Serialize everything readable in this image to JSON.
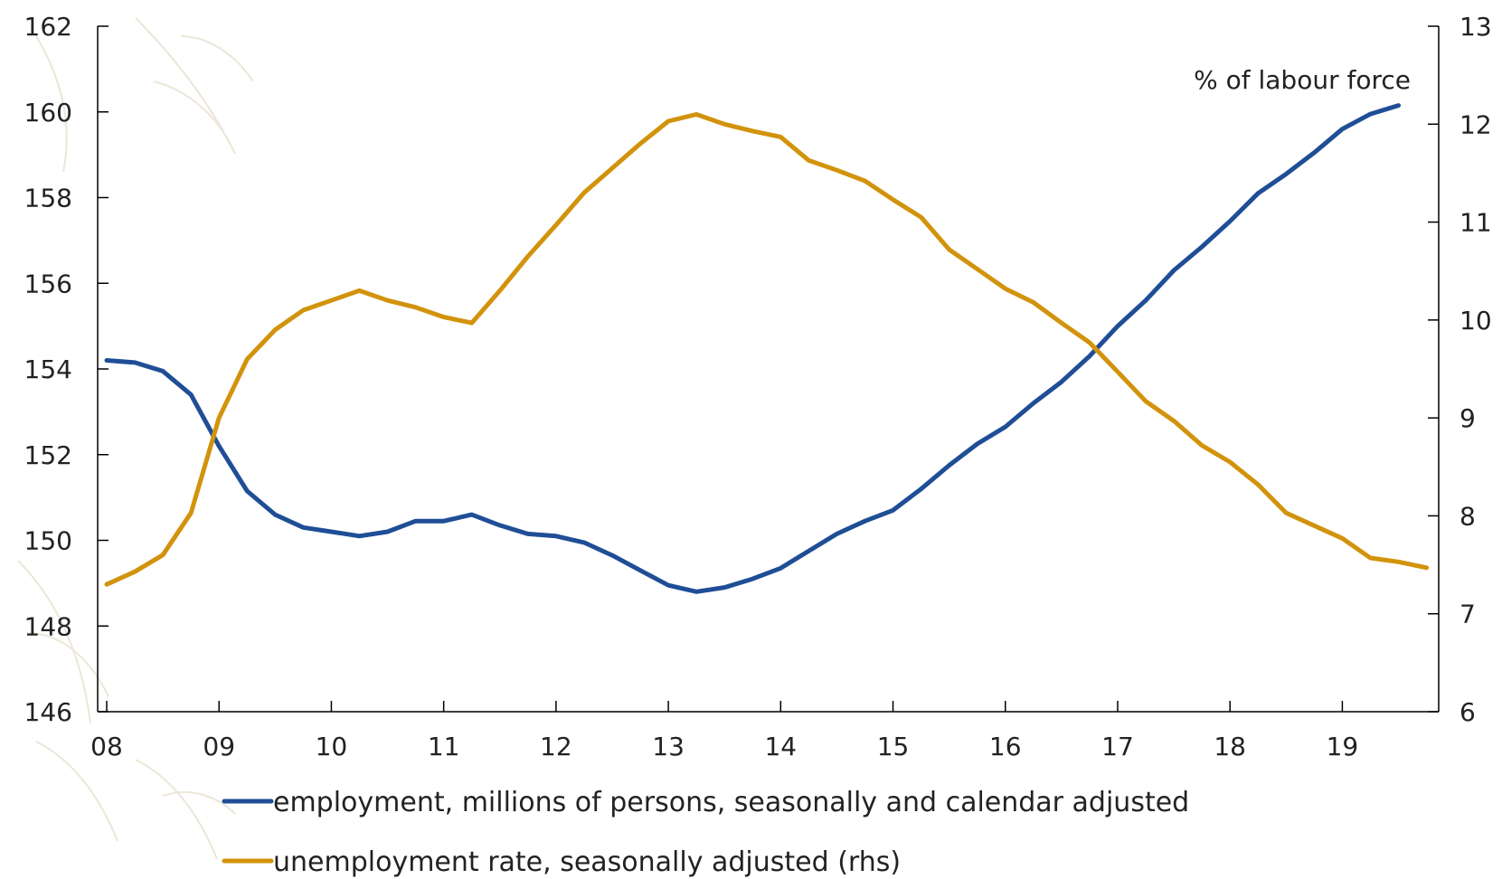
{
  "chart_data": {
    "type": "line",
    "title": "",
    "rhs_unit_label": "% of labour force",
    "x_tick_labels": [
      "08",
      "09",
      "10",
      "11",
      "12",
      "13",
      "14",
      "15",
      "16",
      "17",
      "18",
      "19"
    ],
    "x_range": [
      2008.0,
      2019.85
    ],
    "left_axis": {
      "ticks": [
        146,
        148,
        150,
        152,
        154,
        156,
        158,
        160,
        162
      ],
      "ylim": [
        146,
        162
      ]
    },
    "right_axis": {
      "ticks": [
        6,
        7,
        8,
        9,
        10,
        11,
        12,
        13
      ],
      "ylim": [
        6,
        13
      ]
    },
    "grid": false,
    "legend_position": "bottom",
    "x": [
      2008.0,
      2008.25,
      2008.5,
      2008.75,
      2009.0,
      2009.25,
      2009.5,
      2009.75,
      2010.0,
      2010.25,
      2010.5,
      2010.75,
      2011.0,
      2011.25,
      2011.5,
      2011.75,
      2012.0,
      2012.25,
      2012.5,
      2012.75,
      2013.0,
      2013.25,
      2013.5,
      2013.75,
      2014.0,
      2014.25,
      2014.5,
      2014.75,
      2015.0,
      2015.25,
      2015.5,
      2015.75,
      2016.0,
      2016.25,
      2016.5,
      2016.75,
      2017.0,
      2017.25,
      2017.5,
      2017.75,
      2018.0,
      2018.25,
      2018.5,
      2018.75,
      2019.0,
      2019.25,
      2019.5,
      2019.75
    ],
    "series": [
      {
        "name": "employment, millions of persons, seasonally and calendar adjusted",
        "axis": "left",
        "color": "#1f4e96",
        "values": [
          154.2,
          154.15,
          153.95,
          153.4,
          152.2,
          151.15,
          150.6,
          150.3,
          150.2,
          150.1,
          150.2,
          150.45,
          150.45,
          150.6,
          150.35,
          150.15,
          150.1,
          149.95,
          149.65,
          149.3,
          148.95,
          148.8,
          148.9,
          149.1,
          149.35,
          149.75,
          150.15,
          150.45,
          150.7,
          151.2,
          151.75,
          152.25,
          152.65,
          153.2,
          153.7,
          154.3,
          155.0,
          155.6,
          156.3,
          156.85,
          157.45,
          158.1,
          158.55,
          159.05,
          159.6,
          159.95,
          160.15,
          null
        ]
      },
      {
        "name": "unemployment rate, seasonally adjusted (rhs)",
        "axis": "right",
        "color": "#d2930c",
        "values": [
          7.3,
          7.43,
          7.6,
          8.03,
          9.0,
          9.6,
          9.9,
          10.1,
          10.2,
          10.3,
          10.2,
          10.13,
          10.03,
          9.97,
          10.3,
          10.65,
          10.97,
          11.3,
          11.55,
          11.8,
          12.03,
          12.1,
          12.0,
          11.93,
          11.87,
          11.63,
          11.53,
          11.42,
          11.23,
          11.05,
          10.72,
          10.52,
          10.32,
          10.18,
          9.97,
          9.77,
          9.47,
          9.17,
          8.97,
          8.72,
          8.55,
          8.32,
          8.03,
          7.9,
          7.77,
          7.57,
          7.53,
          7.47
        ]
      }
    ]
  }
}
